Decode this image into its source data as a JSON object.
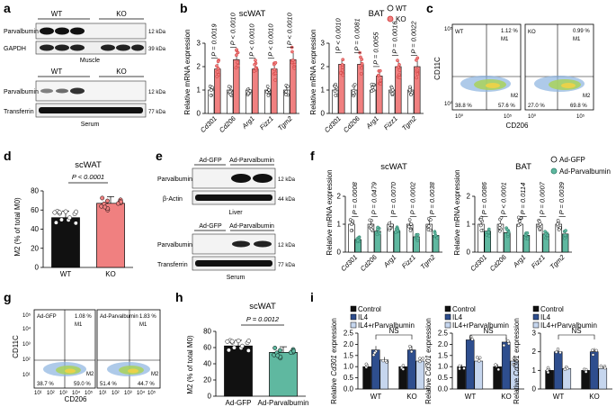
{
  "panels": {
    "a": {
      "label": "a",
      "top_groups": [
        "WT",
        "KO"
      ],
      "muscle_blots": [
        {
          "name": "Parvalbumin",
          "mw": "12 kDa"
        },
        {
          "name": "GAPDH",
          "mw": "39 kDa"
        }
      ],
      "muscle_caption": "Muscle",
      "bottom_groups": [
        "WT",
        "KO"
      ],
      "serum_blots": [
        {
          "name": "Parvalbumin",
          "mw": "12 kDa"
        },
        {
          "name": "Transferrin",
          "mw": "77 kDa"
        }
      ],
      "serum_caption": "Serum"
    },
    "b": {
      "label": "b",
      "ylabel": "Relative mRNA expression",
      "legend": [
        "WT",
        "KO"
      ],
      "colors": {
        "wt": "#ffffff",
        "ko": "#f08080"
      }
    },
    "c": {
      "label": "c",
      "xlabel": "CD206",
      "ylabel": "CD11C",
      "plots": [
        {
          "name": "WT",
          "m1": "1.12 %",
          "m1_tag": "M1",
          "m2_tag": "M2",
          "bl": "38.8 %",
          "br": "57.6 %"
        },
        {
          "name": "KO",
          "m1": "0.99 %",
          "m1_tag": "M1",
          "m2_tag": "M2",
          "bl": "27.0 %",
          "br": "69.8 %"
        }
      ],
      "ticks_x": [
        "10⁰",
        "10⁵",
        "10⁰",
        "10⁵"
      ],
      "ticks_y": [
        "10⁵",
        "10⁰"
      ]
    },
    "d": {
      "label": "d",
      "title": "scWAT",
      "pvalue": "P < 0.0001",
      "ylabel": "M2 (% of total M0)",
      "yticks": [
        "0",
        "20",
        "40",
        "60",
        "80"
      ]
    },
    "e": {
      "label": "e",
      "top_groups": [
        "Ad-GFP",
        "Ad-Parvalbumin"
      ],
      "liver_blots": [
        {
          "name": "Parvalbumin",
          "mw": "12 kDa"
        },
        {
          "name": "β-Actin",
          "mw": "44 kDa"
        }
      ],
      "liver_caption": "Liver",
      "bottom_groups": [
        "Ad-GFP",
        "Ad-Parvalbumin"
      ],
      "serum_blots": [
        {
          "name": "Parvalbumin",
          "mw": "12 kDa"
        },
        {
          "name": "Transferrin",
          "mw": "77 kDa"
        }
      ],
      "serum_caption": "Serum"
    },
    "f": {
      "label": "f",
      "ylabel": "Relative mRNA expression",
      "legend": [
        "Ad-GFP",
        "Ad-Parvalbumin"
      ],
      "colors": {
        "gfp": "#ffffff",
        "parv": "#5fb8a0"
      }
    },
    "g": {
      "label": "g",
      "xlabel": "CD206",
      "ylabel": "CD11C",
      "plots": [
        {
          "name": "Ad-GFP",
          "m1": "1.08 %",
          "m1_tag": "M1",
          "m2_tag": "M2",
          "bl": "38.7 %",
          "br": "59.0 %"
        },
        {
          "name": "Ad-Parvalbumin",
          "m1": "1.83 %",
          "m1_tag": "M1",
          "m2_tag": "M2",
          "bl": "51.4 %",
          "br": "44.7 %"
        }
      ],
      "ticks": [
        "10¹",
        "10²",
        "10³",
        "10⁴",
        "10⁵"
      ]
    },
    "h": {
      "label": "h",
      "title": "scWAT",
      "pvalue": "P = 0.0012",
      "ylabel": "M2 (% of total M0)",
      "yticks": [
        "0",
        "20",
        "40",
        "60",
        "80"
      ],
      "xlabels": [
        "Ad-GFP",
        "Ad-Parvalbumin"
      ]
    },
    "i": {
      "label": "i",
      "legend": [
        "Control",
        "IL4",
        "IL4+rParvalbumin"
      ],
      "ylabel_prefix": "Relative ",
      "ylabel_gene": "Cd301",
      "ylabel_suffix": " expression",
      "ns": "NS",
      "xlabels": [
        "WT",
        "KO"
      ],
      "colors": {
        "control": "#111111",
        "il4": "#2e4e8e",
        "rparv": "#c6d6ee"
      }
    }
  },
  "chart_data": [
    {
      "id": "b-scWAT",
      "type": "bar",
      "title": "scWAT",
      "categories": [
        "Cd301",
        "Cd206",
        "Arg1",
        "Fizz1",
        "Tgm2"
      ],
      "series": [
        {
          "name": "WT",
          "values": [
            1,
            1,
            1,
            1,
            1
          ]
        },
        {
          "name": "KO",
          "values": [
            1.9,
            2.3,
            1.9,
            1.9,
            2.3
          ]
        }
      ],
      "pvalues": [
        "P = 0.0019",
        "P < 0.0010",
        "P < 0.0010",
        "P < 0.0010",
        "P < 0.0010"
      ],
      "ylabel": "Relative mRNA expression",
      "ylim": [
        0,
        3
      ],
      "yticks": [
        "0",
        "1",
        "2",
        "3"
      ]
    },
    {
      "id": "b-BAT",
      "type": "bar",
      "title": "BAT",
      "categories": [
        "Cd301",
        "Cd206",
        "Arg1",
        "Fizz1",
        "Tgm2"
      ],
      "series": [
        {
          "name": "WT",
          "values": [
            1,
            1,
            1,
            1,
            1
          ]
        },
        {
          "name": "KO",
          "values": [
            2.1,
            2.1,
            1.6,
            2.0,
            2.0
          ]
        }
      ],
      "pvalues": [
        "P < 0.0010",
        "P = 0.0081",
        "P = 0.0055",
        "P = 0.0016",
        "P = 0.0022"
      ],
      "ylabel": "Relative mRNA expression",
      "ylim": [
        0,
        3
      ],
      "yticks": [
        "0",
        "1",
        "2",
        "3"
      ]
    },
    {
      "id": "d",
      "type": "bar",
      "title": "scWAT",
      "categories": [
        "WT",
        "KO"
      ],
      "values": [
        52,
        67
      ],
      "ylabel": "M2 (% of total M0)",
      "ylim": [
        0,
        80
      ]
    },
    {
      "id": "f-scWAT",
      "type": "bar",
      "title": "scWAT",
      "categories": [
        "Cd301",
        "Cd206",
        "Arg1",
        "Fizz1",
        "Tgm2"
      ],
      "series": [
        {
          "name": "Ad-GFP",
          "values": [
            1,
            1,
            1,
            1,
            1
          ]
        },
        {
          "name": "Ad-Parvalbumin",
          "values": [
            0.45,
            0.75,
            0.75,
            0.55,
            0.6
          ]
        }
      ],
      "pvalues": [
        "P = 0.0008",
        "P = 0.0479",
        "P = 0.0070",
        "P = 0.0002",
        "P = 0.0038"
      ],
      "ylabel": "Relative mRNA expression",
      "ylim": [
        0,
        2
      ],
      "yticks": [
        "0",
        "1",
        "2"
      ]
    },
    {
      "id": "f-BAT",
      "type": "bar",
      "title": "BAT",
      "categories": [
        "Cd301",
        "Cd206",
        "Arg1",
        "Fizz1",
        "Tgm2"
      ],
      "series": [
        {
          "name": "Ad-GFP",
          "values": [
            1,
            1,
            1,
            1,
            1
          ]
        },
        {
          "name": "Ad-Parvalbumin",
          "values": [
            0.75,
            0.7,
            0.6,
            0.65,
            0.65
          ]
        }
      ],
      "pvalues": [
        "P = 0.0086",
        "P < 0.0001",
        "P = 0.0114",
        "P = 0.0007",
        "P = 0.0039"
      ],
      "ylabel": "Relative mRNA expression",
      "ylim": [
        0,
        2
      ],
      "yticks": [
        "0",
        "1",
        "2"
      ]
    },
    {
      "id": "h",
      "type": "bar",
      "title": "scWAT",
      "categories": [
        "Ad-GFP",
        "Ad-Parvalbumin"
      ],
      "values": [
        62,
        54
      ],
      "ylabel": "M2 (% of total M0)",
      "ylim": [
        0,
        80
      ]
    },
    {
      "id": "i-1",
      "type": "bar",
      "categories": [
        "WT",
        "KO"
      ],
      "series": [
        {
          "name": "Control",
          "values": [
            1.0,
            1.0
          ]
        },
        {
          "name": "IL4",
          "values": [
            1.75,
            1.75
          ]
        },
        {
          "name": "IL4+rParvalbumin",
          "values": [
            1.3,
            1.25
          ]
        }
      ],
      "ylim": [
        0,
        2.5
      ],
      "yticks": [
        "0.0",
        "0.5",
        "1.0",
        "1.5",
        "2.0",
        "2.5"
      ]
    },
    {
      "id": "i-2",
      "type": "bar",
      "categories": [
        "WT",
        "KO"
      ],
      "series": [
        {
          "name": "Control",
          "values": [
            1.0,
            1.0
          ]
        },
        {
          "name": "IL4",
          "values": [
            2.2,
            2.1
          ]
        },
        {
          "name": "IL4+rParvalbumin",
          "values": [
            1.25,
            1.25
          ]
        }
      ],
      "ylim": [
        0,
        2.5
      ],
      "yticks": [
        "0.0",
        "0.5",
        "1.0",
        "1.5",
        "2.0",
        "2.5"
      ]
    },
    {
      "id": "i-3",
      "type": "bar",
      "categories": [
        "WT",
        "KO"
      ],
      "series": [
        {
          "name": "Control",
          "values": [
            1.0,
            1.0
          ]
        },
        {
          "name": "IL4",
          "values": [
            2.0,
            2.0
          ]
        },
        {
          "name": "IL4+rParvalbumin",
          "values": [
            1.1,
            1.1
          ]
        }
      ],
      "ylim": [
        0,
        3
      ],
      "yticks": [
        "0",
        "1",
        "2",
        "3"
      ]
    }
  ]
}
